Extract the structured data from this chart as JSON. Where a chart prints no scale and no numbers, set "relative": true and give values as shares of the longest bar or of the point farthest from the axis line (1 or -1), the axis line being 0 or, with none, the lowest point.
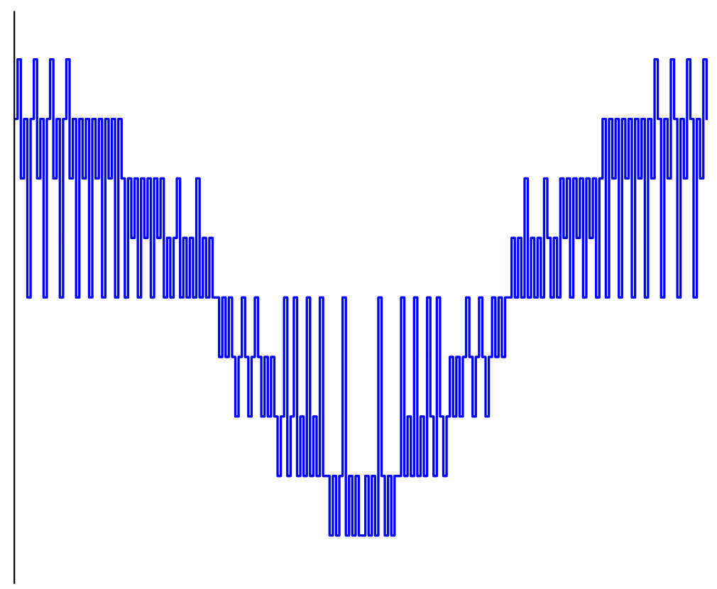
{
  "chart_data": {
    "type": "step",
    "relative": true,
    "marker": "none",
    "line_style": "solid",
    "categories": [
      null,
      null,
      null,
      null,
      null,
      null,
      null,
      null,
      null,
      null,
      null,
      null,
      null,
      null,
      null,
      null,
      null,
      null,
      null,
      null,
      null,
      null,
      null,
      null,
      null,
      null,
      null,
      null,
      null,
      null,
      null,
      null,
      null,
      null,
      null,
      null,
      null,
      null,
      null,
      null,
      null,
      null,
      null,
      null,
      null,
      null,
      null,
      null,
      null,
      null,
      null,
      null,
      null,
      null,
      null,
      null,
      null,
      null,
      null,
      null,
      null,
      null,
      null,
      null,
      null,
      null,
      null,
      null,
      null,
      null,
      null,
      null,
      null,
      null,
      null,
      null,
      null,
      null,
      null,
      null,
      null,
      null,
      null,
      null,
      null,
      null,
      null,
      null,
      null,
      null,
      null,
      null,
      null,
      null,
      null,
      null,
      null,
      null,
      null,
      null,
      null,
      null,
      null,
      null,
      null,
      null,
      null,
      null,
      null,
      null,
      null,
      null,
      null,
      null,
      null,
      null,
      null,
      null,
      null,
      null,
      null,
      null,
      null,
      null,
      null,
      null,
      null,
      null,
      null,
      null,
      null,
      null,
      null,
      null,
      null,
      null,
      null,
      null,
      null,
      null,
      null,
      null,
      null,
      null,
      null,
      null,
      null,
      null,
      null,
      null,
      null,
      null,
      null,
      null,
      null,
      null,
      null,
      null,
      null,
      null,
      null,
      null,
      null,
      null,
      null,
      null,
      null,
      null,
      null,
      null,
      null,
      null,
      null,
      null,
      null,
      null,
      null,
      null,
      null,
      null,
      null,
      null,
      null,
      null,
      null,
      null,
      null,
      null,
      null,
      null,
      null,
      null,
      null,
      null,
      null,
      null,
      null,
      null,
      null,
      null,
      null,
      null,
      null,
      null,
      null,
      null,
      null,
      null,
      null,
      null,
      null,
      null,
      null,
      null
    ],
    "series": [
      {
        "color": "#0000ff",
        "values": [
          0.875,
          1,
          0.75,
          0.875,
          0.5,
          0.875,
          1,
          0.75,
          0.875,
          0.5,
          0.875,
          1,
          0.75,
          0.875,
          0.5,
          0.875,
          1,
          0.75,
          0.875,
          0.5,
          0.875,
          0.75,
          0.875,
          0.5,
          0.875,
          0.75,
          0.875,
          0.5,
          0.875,
          0.75,
          0.875,
          0.5,
          0.875,
          0.75,
          0.5,
          0.75,
          0.625,
          0.75,
          0.5,
          0.75,
          0.625,
          0.75,
          0.5,
          0.75,
          0.625,
          0.75,
          0.5,
          0.625,
          0.5,
          0.625,
          0.75,
          0.5,
          0.625,
          0.5,
          0.625,
          0.5,
          0.75,
          0.5,
          0.625,
          0.5,
          0.625,
          0.5,
          0.5,
          0.375,
          0.5,
          0.375,
          0.5,
          0.375,
          0.25,
          0.375,
          0.5,
          0.375,
          0.25,
          0.375,
          0.5,
          0.375,
          0.25,
          0.375,
          0.25,
          0.375,
          0.25,
          0.125,
          0.25,
          0.5,
          0.125,
          0.25,
          0.5,
          0.125,
          0.25,
          0.125,
          0.5,
          0.125,
          0.25,
          0.125,
          0.5,
          0.125,
          0.125,
          0,
          0.125,
          0,
          0.125,
          0.5,
          0,
          0.125,
          0,
          0.125,
          0,
          0,
          0.125,
          0,
          0.125,
          0,
          0.5,
          0.125,
          0,
          0.125,
          0,
          0.125,
          0.125,
          0.5,
          0.125,
          0.25,
          0.125,
          0.5,
          0.125,
          0.25,
          0.125,
          0.5,
          0.25,
          0.125,
          0.5,
          0.25,
          0.125,
          0.25,
          0.375,
          0.25,
          0.375,
          0.25,
          0.375,
          0.5,
          0.375,
          0.25,
          0.375,
          0.5,
          0.375,
          0.25,
          0.375,
          0.5,
          0.375,
          0.5,
          0.375,
          0.5,
          0.5,
          0.625,
          0.5,
          0.625,
          0.5,
          0.75,
          0.5,
          0.625,
          0.5,
          0.625,
          0.5,
          0.75,
          0.625,
          0.5,
          0.625,
          0.5,
          0.75,
          0.625,
          0.75,
          0.5,
          0.75,
          0.625,
          0.75,
          0.5,
          0.75,
          0.625,
          0.75,
          0.5,
          0.75,
          0.875,
          0.5,
          0.875,
          0.75,
          0.875,
          0.5,
          0.875,
          0.75,
          0.875,
          0.5,
          0.875,
          0.75,
          0.875,
          0.5,
          0.875,
          0.75,
          1,
          0.875,
          0.5,
          0.875,
          0.75,
          1,
          0.875,
          0.5,
          0.875,
          0.75,
          1,
          0.875,
          0.5,
          0.875,
          0.75,
          1,
          0.875
        ]
      }
    ]
  }
}
